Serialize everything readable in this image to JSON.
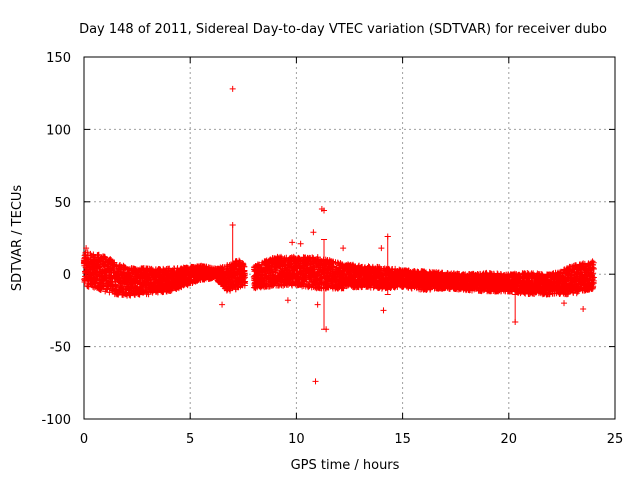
{
  "chart_data": {
    "type": "scatter",
    "title": "Day 148 of 2011, Sidereal Day-to-day VTEC variation (SDTVAR) for receiver dubo",
    "xlabel": "GPS time / hours",
    "ylabel": "SDTVAR / TECUs",
    "xlim": [
      0,
      25
    ],
    "ylim": [
      -100,
      150
    ],
    "xticks": [
      0,
      5,
      10,
      15,
      20,
      25
    ],
    "yticks": [
      -100,
      -50,
      0,
      50,
      100,
      150
    ],
    "xtick_labels": [
      "0",
      "5",
      "10",
      "15",
      "20",
      "25"
    ],
    "ytick_labels": [
      "-100",
      "-50",
      "0",
      "50",
      "100",
      "150"
    ],
    "grid": true,
    "marker": "+",
    "color": "#ff0000",
    "dense_band": [
      {
        "x": 0.0,
        "lo": -8,
        "hi": 16
      },
      {
        "x": 0.5,
        "lo": -10,
        "hi": 14
      },
      {
        "x": 1.0,
        "lo": -12,
        "hi": 13
      },
      {
        "x": 1.5,
        "lo": -14,
        "hi": 8
      },
      {
        "x": 2.0,
        "lo": -15,
        "hi": 5
      },
      {
        "x": 3.0,
        "lo": -14,
        "hi": 4
      },
      {
        "x": 4.0,
        "lo": -12,
        "hi": 4
      },
      {
        "x": 5.0,
        "lo": -7,
        "hi": 5
      },
      {
        "x": 5.5,
        "lo": -4,
        "hi": 6
      },
      {
        "x": 6.2,
        "lo": -3,
        "hi": 4
      },
      {
        "x": 6.7,
        "lo": -12,
        "hi": 6
      },
      {
        "x": 7.3,
        "lo": -10,
        "hi": 10
      },
      {
        "x": 7.6,
        "lo": -8,
        "hi": 6
      },
      {
        "x": 8.0,
        "lo": -10,
        "hi": 6
      },
      {
        "x": 9.0,
        "lo": -8,
        "hi": 12
      },
      {
        "x": 10.0,
        "lo": -8,
        "hi": 12
      },
      {
        "x": 11.0,
        "lo": -10,
        "hi": 12
      },
      {
        "x": 12.0,
        "lo": -10,
        "hi": 8
      },
      {
        "x": 13.0,
        "lo": -9,
        "hi": 6
      },
      {
        "x": 14.0,
        "lo": -10,
        "hi": 5
      },
      {
        "x": 15.0,
        "lo": -9,
        "hi": 3
      },
      {
        "x": 16.0,
        "lo": -11,
        "hi": 2
      },
      {
        "x": 17.0,
        "lo": -10,
        "hi": 1
      },
      {
        "x": 18.0,
        "lo": -11,
        "hi": 0
      },
      {
        "x": 19.0,
        "lo": -12,
        "hi": 1
      },
      {
        "x": 20.0,
        "lo": -12,
        "hi": 0
      },
      {
        "x": 21.0,
        "lo": -14,
        "hi": 1
      },
      {
        "x": 22.0,
        "lo": -14,
        "hi": 0
      },
      {
        "x": 23.0,
        "lo": -14,
        "hi": 6
      },
      {
        "x": 23.5,
        "lo": -12,
        "hi": 8
      },
      {
        "x": 24.0,
        "lo": -10,
        "hi": 9
      }
    ],
    "data_gaps": [
      [
        7.6,
        8.0
      ]
    ],
    "outliers": [
      {
        "x": 7.0,
        "y": 128
      },
      {
        "x": 11.2,
        "y": 45
      },
      {
        "x": 11.3,
        "y": 44
      },
      {
        "x": 10.9,
        "y": -74
      },
      {
        "x": 10.8,
        "y": 29
      },
      {
        "x": 7.0,
        "y": 34
      },
      {
        "x": 12.2,
        "y": 18
      },
      {
        "x": 14.3,
        "y": 26
      },
      {
        "x": 14.0,
        "y": 18
      },
      {
        "x": 9.6,
        "y": -18
      },
      {
        "x": 11.4,
        "y": -38
      },
      {
        "x": 14.1,
        "y": -25
      },
      {
        "x": 20.3,
        "y": -33
      },
      {
        "x": 23.5,
        "y": -24
      },
      {
        "x": 22.6,
        "y": -20
      },
      {
        "x": 6.5,
        "y": -21
      },
      {
        "x": 11.0,
        "y": -21
      },
      {
        "x": 9.8,
        "y": 22
      },
      {
        "x": 10.2,
        "y": 21
      },
      {
        "x": 0.1,
        "y": 18
      }
    ],
    "error_bars": [
      {
        "x": 7.0,
        "lo": -5,
        "hi": 34
      },
      {
        "x": 11.3,
        "lo": -38,
        "hi": 24
      },
      {
        "x": 14.3,
        "lo": -14,
        "hi": 26
      },
      {
        "x": 20.3,
        "lo": -33,
        "hi": -14
      }
    ]
  }
}
